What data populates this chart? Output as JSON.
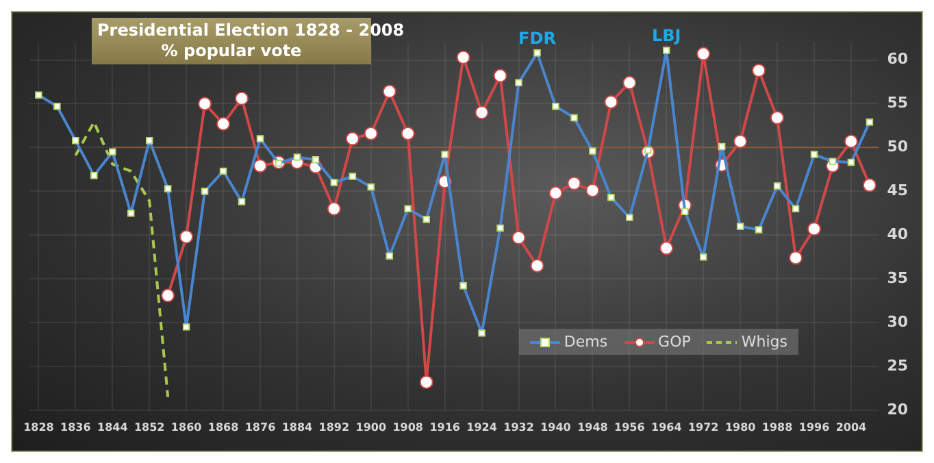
{
  "chart_data": {
    "type": "line",
    "title": "Presidential Election 1828 - 2008",
    "subtitle": "% popular vote",
    "xlim": [
      1826,
      2010
    ],
    "xticks": [
      1828,
      1836,
      1844,
      1852,
      1860,
      1868,
      1876,
      1884,
      1892,
      1900,
      1908,
      1916,
      1924,
      1932,
      1940,
      1948,
      1956,
      1964,
      1972,
      1980,
      1988,
      1996,
      2004
    ],
    "ylim": [
      20,
      62
    ],
    "yticks": [
      20,
      25,
      30,
      35,
      40,
      45,
      50,
      55,
      60
    ],
    "grid": true,
    "legend": "bottom right",
    "ref_lines": [
      {
        "axis": "y",
        "value": 50,
        "color": "#8a5a3a"
      }
    ],
    "annotations": [
      {
        "text": "FDR",
        "x": 1936,
        "y": 60.8
      },
      {
        "text": "LBJ",
        "x": 1964,
        "y": 61.1
      }
    ],
    "series": [
      {
        "name": "Dems",
        "color": "#4a86d0",
        "marker": "square",
        "line_style": "solid",
        "x": [
          1828,
          1832,
          1836,
          1840,
          1844,
          1848,
          1852,
          1856,
          1860,
          1864,
          1868,
          1872,
          1876,
          1880,
          1884,
          1888,
          1892,
          1896,
          1900,
          1904,
          1908,
          1912,
          1916,
          1920,
          1924,
          1928,
          1932,
          1936,
          1940,
          1944,
          1948,
          1952,
          1956,
          1960,
          1964,
          1968,
          1972,
          1976,
          1980,
          1984,
          1988,
          1992,
          1996,
          2000,
          2004,
          2008
        ],
        "values": [
          56.0,
          54.7,
          50.8,
          46.8,
          49.5,
          42.5,
          50.8,
          45.3,
          29.5,
          45.0,
          47.3,
          43.8,
          51.0,
          48.2,
          48.9,
          48.6,
          46.0,
          46.7,
          45.5,
          37.6,
          43.0,
          41.8,
          49.2,
          34.2,
          28.8,
          40.8,
          57.4,
          60.8,
          54.7,
          53.4,
          49.6,
          44.3,
          42.0,
          49.7,
          61.1,
          42.7,
          37.5,
          50.1,
          41.0,
          40.6,
          45.6,
          43.0,
          49.2,
          48.4,
          48.3,
          52.9
        ]
      },
      {
        "name": "GOP",
        "color": "#d04848",
        "marker": "circle",
        "line_style": "solid",
        "x": [
          1856,
          1860,
          1864,
          1868,
          1872,
          1876,
          1880,
          1884,
          1888,
          1892,
          1896,
          1900,
          1904,
          1908,
          1912,
          1916,
          1920,
          1924,
          1928,
          1932,
          1936,
          1940,
          1944,
          1948,
          1952,
          1956,
          1960,
          1964,
          1968,
          1972,
          1976,
          1980,
          1984,
          1988,
          1992,
          1996,
          2000,
          2004,
          2008
        ],
        "values": [
          33.1,
          39.8,
          55.0,
          52.7,
          55.6,
          47.9,
          48.3,
          48.3,
          47.8,
          43.0,
          51.0,
          51.6,
          56.4,
          51.6,
          23.2,
          46.1,
          60.3,
          54.0,
          58.2,
          39.7,
          36.5,
          44.8,
          45.9,
          45.1,
          55.2,
          57.4,
          49.5,
          38.5,
          43.4,
          60.7,
          48.0,
          50.7,
          58.8,
          53.4,
          37.4,
          40.7,
          47.9,
          50.7,
          45.7
        ]
      },
      {
        "name": "Whigs",
        "color": "#a8c850",
        "marker": "none",
        "line_style": "dashed",
        "x": [
          1836,
          1840,
          1844,
          1848,
          1852,
          1856
        ],
        "values": [
          49.1,
          52.9,
          48.1,
          47.3,
          43.9,
          21.5
        ]
      }
    ]
  }
}
